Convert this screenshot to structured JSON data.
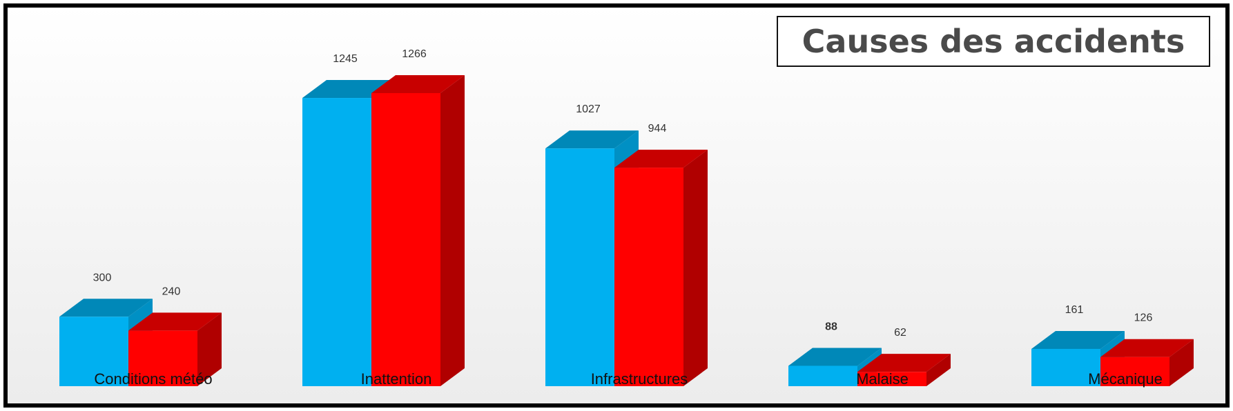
{
  "chart_data": {
    "type": "bar",
    "title": "Causes des accidents",
    "categories": [
      "Conditions météo",
      "Inattention",
      "Infrastructures",
      "Malaise",
      "Mécanique"
    ],
    "series": [
      {
        "values": [
          300,
          1245,
          1027,
          88,
          161
        ],
        "color": "#00b0f0"
      },
      {
        "values": [
          240,
          1266,
          944,
          62,
          126
        ],
        "color": "#ff0000"
      }
    ],
    "bold_value_labels": [
      [
        false,
        false,
        false,
        true,
        false
      ],
      [
        false,
        false,
        false,
        false,
        false
      ]
    ],
    "style": "3d-column",
    "grid": false,
    "legend": "none"
  }
}
